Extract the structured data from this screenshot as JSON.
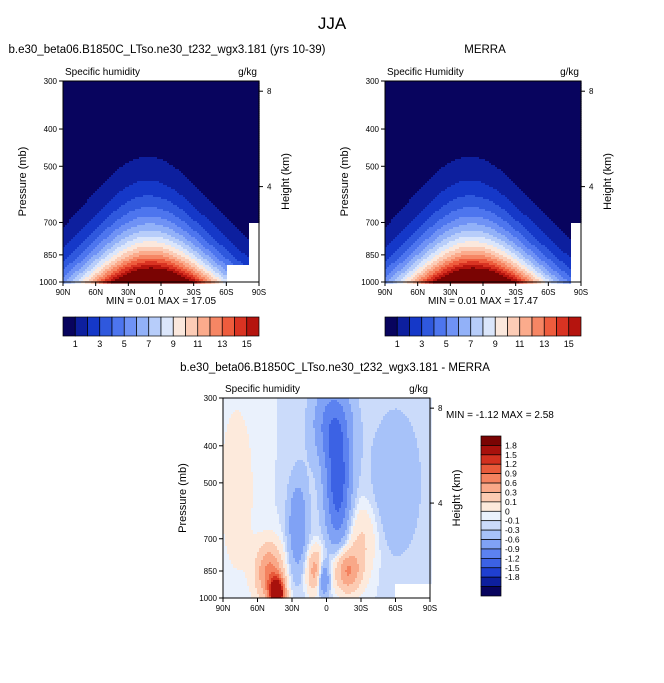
{
  "page_title": "JJA",
  "colors": {
    "full_scale": [
      "#08045e",
      "#0d1f9e",
      "#1538c8",
      "#2f58dd",
      "#4d75ee",
      "#6f92f5",
      "#92b1f8",
      "#b7cdfa",
      "#dbe6fb",
      "#fbe8dd",
      "#fcccb6",
      "#fbab8c",
      "#f68664",
      "#ee5c3d",
      "#d93322",
      "#b5140e",
      "#7a0403"
    ],
    "diff_scale": [
      "#08045e",
      "#0d1f9e",
      "#1f3fd0",
      "#3c62e4",
      "#5c82f0",
      "#80a2f5",
      "#a7c2f9",
      "#cbdbfa",
      "#eaf1fc",
      "#fdeadc",
      "#fccbb2",
      "#f9a888",
      "#f4825f",
      "#e85a3a",
      "#d2311f",
      "#a8110c",
      "#7a0403"
    ],
    "missing": "#ffffff"
  },
  "charts": [
    {
      "id": "model",
      "title": "b.e30_beta06.B1850C_LTso.ne30_t232_wgx3.181 (yrs 10-39)",
      "left_label": "Specific humidity",
      "right_label": "g/kg",
      "ylabel": "Pressure (mb)",
      "ylabel_right": "Height (km)",
      "stats": "MIN =  0.01  MAX =  17.05"
    },
    {
      "id": "merra",
      "title": "MERRA",
      "left_label": "Specific Humidity",
      "right_label": "g/kg",
      "ylabel": "Pressure (mb)",
      "ylabel_right": "Height (km)",
      "stats": "MIN =  0.01  MAX =  17.47"
    },
    {
      "id": "diff",
      "title": "b.e30_beta06.B1850C_LTso.ne30_t232_wgx3.181 - MERRA",
      "left_label": "Specific humidity",
      "right_label": "g/kg",
      "ylabel": "Pressure (mb)",
      "ylabel_right": "Height (km)",
      "stats": "MIN = -1.12  MAX =   2.58"
    }
  ],
  "chart_data": [
    {
      "type": "heatmap",
      "title": "b.e30_beta06.B1850C_LTso.ne30_t232_wgx3.181 (yrs 10-39)",
      "variable": "Specific humidity",
      "units": "g/kg",
      "x_ticks": [
        "90N",
        "60N",
        "30N",
        "0",
        "30S",
        "60S",
        "90S"
      ],
      "x_values": [
        90,
        60,
        30,
        0,
        -30,
        -60,
        -90
      ],
      "y_ticks": [
        300,
        400,
        500,
        700,
        850,
        1000
      ],
      "y_scale": "log",
      "ylim": [
        1000,
        300
      ],
      "height_ticks": [
        8,
        4
      ],
      "min": 0.01,
      "max": 17.05,
      "peak_location": {
        "lat": 8,
        "pressure": 1000
      },
      "missing_region": {
        "lat_range": [
          -60,
          -90
        ],
        "pressure_range": [
          900,
          1000
        ]
      }
    },
    {
      "type": "heatmap",
      "title": "MERRA",
      "variable": "Specific Humidity",
      "units": "g/kg",
      "x_ticks": [
        "90N",
        "60N",
        "30N",
        "0",
        "30S",
        "60S",
        "90S"
      ],
      "x_values": [
        90,
        60,
        30,
        0,
        -30,
        -60,
        -90
      ],
      "y_ticks": [
        300,
        400,
        500,
        700,
        850,
        1000
      ],
      "y_scale": "log",
      "ylim": [
        1000,
        300
      ],
      "height_ticks": [
        8,
        4
      ],
      "min": 0.01,
      "max": 17.47,
      "peak_location": {
        "lat": 8,
        "pressure": 1000
      }
    },
    {
      "type": "heatmap",
      "title": "b.e30_beta06.B1850C_LTso.ne30_t232_wgx3.181 - MERRA",
      "variable": "Specific humidity",
      "units": "g/kg",
      "x_ticks": [
        "90N",
        "60N",
        "30N",
        "0",
        "30S",
        "60S",
        "90S"
      ],
      "x_values": [
        90,
        60,
        30,
        0,
        -30,
        -60,
        -90
      ],
      "y_ticks": [
        300,
        400,
        500,
        700,
        850,
        1000
      ],
      "y_scale": "log",
      "ylim": [
        1000,
        300
      ],
      "height_ticks": [
        8,
        4
      ],
      "min": -1.12,
      "max": 2.58,
      "features": [
        {
          "lat": 43,
          "pressure": 970,
          "value": 2.5
        },
        {
          "lat": 8,
          "pressure": 850,
          "value": 0.9
        },
        {
          "lat": -18,
          "pressure": 850,
          "value": 0.9
        },
        {
          "lat": -10,
          "pressure": 500,
          "value": -1.0
        },
        {
          "lat": 3,
          "pressure": 880,
          "value": -1.1
        }
      ]
    },
    {
      "type": "colorbar",
      "labels": [
        "1",
        "3",
        "5",
        "7",
        "9",
        "11",
        "13",
        "15"
      ],
      "levels": [
        1,
        2,
        3,
        4,
        5,
        6,
        7,
        8,
        9,
        10,
        11,
        12,
        13,
        14,
        15,
        16
      ]
    },
    {
      "type": "colorbar",
      "labels": [
        "1",
        "3",
        "5",
        "7",
        "9",
        "11",
        "13",
        "15"
      ],
      "levels": [
        1,
        2,
        3,
        4,
        5,
        6,
        7,
        8,
        9,
        10,
        11,
        12,
        13,
        14,
        15,
        16
      ]
    },
    {
      "type": "colorbar",
      "orientation": "vertical",
      "labels": [
        "1.8",
        "1.5",
        "1.2",
        "0.9",
        "0.6",
        "0.3",
        "0.1",
        "0",
        "-0.1",
        "-0.3",
        "-0.6",
        "-0.9",
        "-1.2",
        "-1.5",
        "-1.8"
      ],
      "levels": [
        1.8,
        1.5,
        1.2,
        0.9,
        0.6,
        0.3,
        0.1,
        0,
        -0.1,
        -0.3,
        -0.6,
        -0.9,
        -1.2,
        -1.5,
        -1.8
      ]
    }
  ]
}
